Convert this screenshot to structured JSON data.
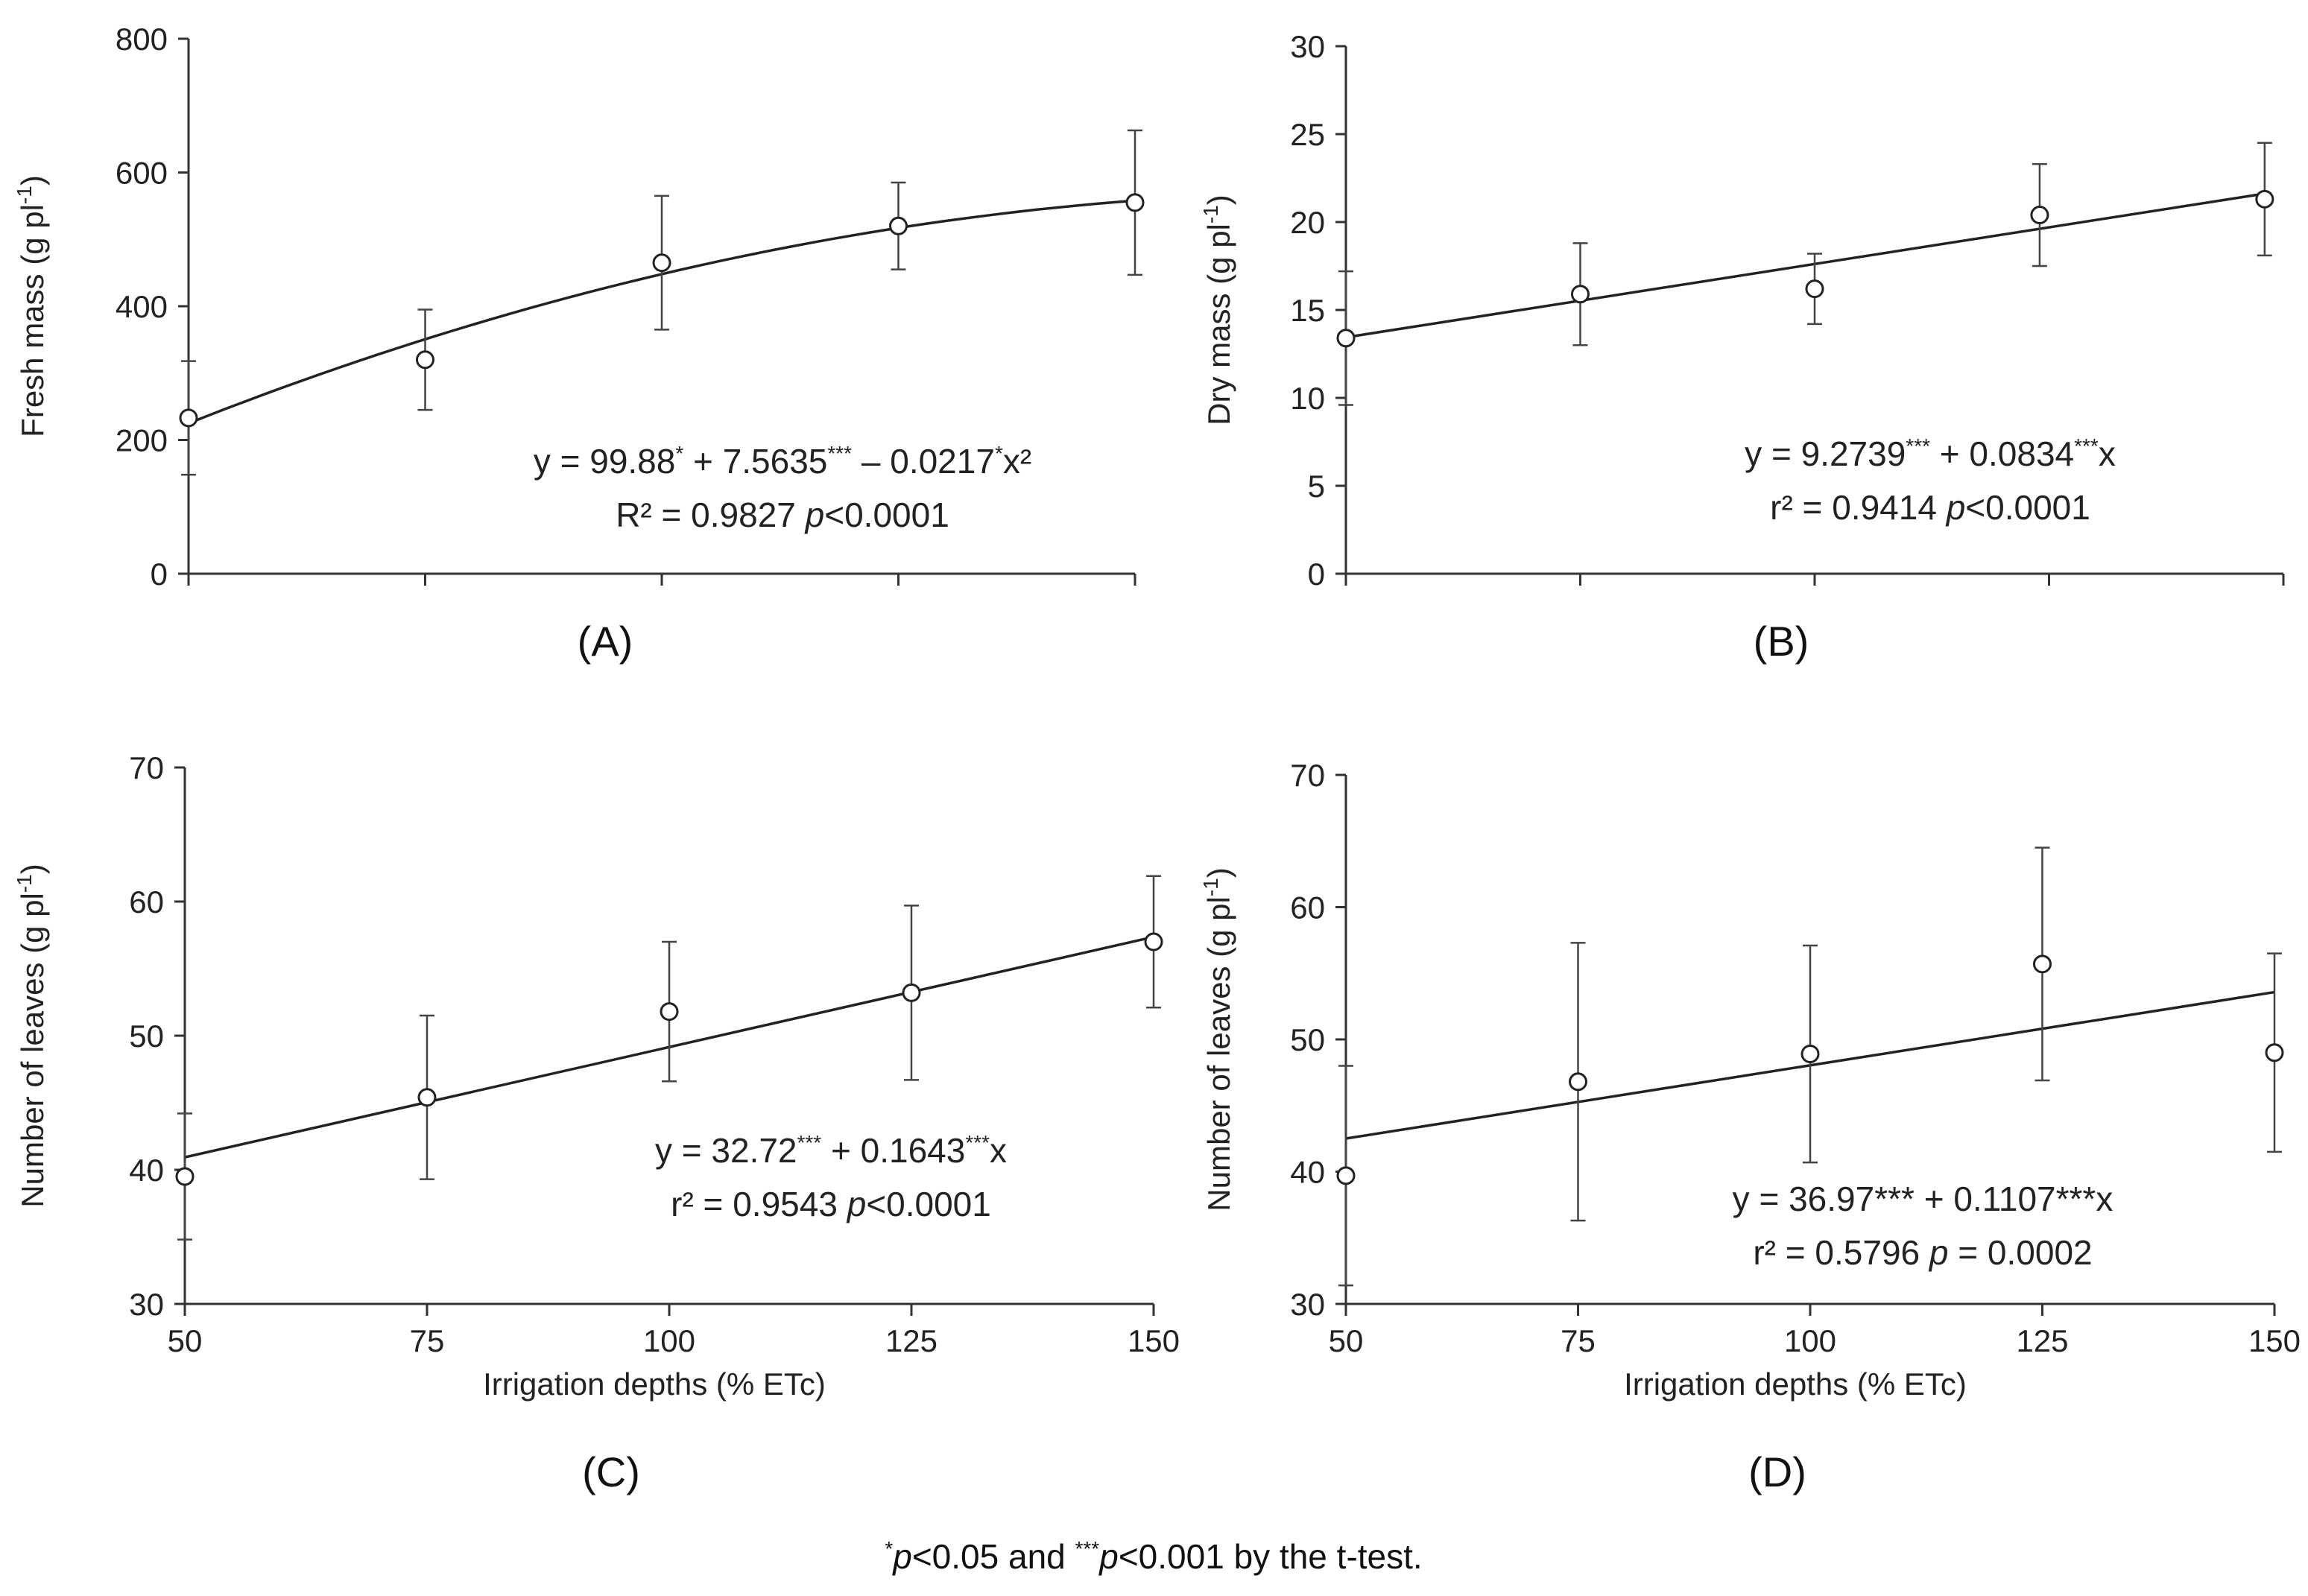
{
  "chart_data": [
    {
      "id": "A",
      "type": "scatter",
      "panel_label": "(A)",
      "ylabel": "Fresh mass (g pl",
      "ylabel_sup": "-1",
      "ylabel_close": ")",
      "xlabel": "",
      "xlim": [
        50,
        150
      ],
      "ylim": [
        0,
        800
      ],
      "yticks": [
        0,
        200,
        400,
        600,
        800
      ],
      "xticks": [
        50,
        75,
        100,
        125,
        150
      ],
      "x_tick_labels_shown": false,
      "points": [
        {
          "x": 50,
          "y": 233,
          "err": 85
        },
        {
          "x": 75,
          "y": 320,
          "err": 75
        },
        {
          "x": 100,
          "y": 465,
          "err": 100
        },
        {
          "x": 125,
          "y": 520,
          "err": 65
        },
        {
          "x": 150,
          "y": 555,
          "err": 108
        }
      ],
      "fit": {
        "kind": "quadratic",
        "range": [
          50,
          150
        ]
      },
      "equation_lines": [
        [
          {
            "t": "y = 99.88"
          },
          {
            "t": "*",
            "sup": true
          },
          {
            "t": " + 7.5635"
          },
          {
            "t": "***",
            "sup": true
          },
          {
            "t": " – 0.0217"
          },
          {
            "t": "*",
            "sup": true
          },
          {
            "t": "x²"
          }
        ],
        [
          {
            "t": "R² = 0.9827      "
          },
          {
            "t": "p",
            "italic": true
          },
          {
            "t": "<0.0001"
          }
        ]
      ]
    },
    {
      "id": "B",
      "type": "scatter",
      "panel_label": "(B)",
      "ylabel": "Dry mass (g pl",
      "ylabel_sup": "-1",
      "ylabel_close": ")",
      "xlabel": "",
      "xlim": [
        50,
        150
      ],
      "ylim": [
        0,
        30
      ],
      "yticks": [
        0,
        5,
        10,
        15,
        20,
        25,
        30
      ],
      "xticks": [
        50,
        75,
        100,
        125,
        150
      ],
      "x_tick_labels_shown": false,
      "points": [
        {
          "x": 50,
          "y": 13.4,
          "err": 3.8
        },
        {
          "x": 75,
          "y": 15.9,
          "err": 2.9
        },
        {
          "x": 100,
          "y": 16.2,
          "err": 2.0
        },
        {
          "x": 124,
          "y": 20.4,
          "err": 2.9
        },
        {
          "x": 148,
          "y": 21.3,
          "err": 3.2
        }
      ],
      "fit": {
        "kind": "linear",
        "intercept": 9.2739,
        "slope": 0.0834,
        "range": [
          50,
          148
        ]
      },
      "equation_lines": [
        [
          {
            "t": "y = 9.2739"
          },
          {
            "t": "***",
            "sup": true
          },
          {
            "t": " + 0.0834"
          },
          {
            "t": "***",
            "sup": true
          },
          {
            "t": "x"
          }
        ],
        [
          {
            "t": "r² = 0.9414      "
          },
          {
            "t": "p",
            "italic": true
          },
          {
            "t": "<0.0001"
          }
        ]
      ]
    },
    {
      "id": "C",
      "type": "scatter",
      "panel_label": "(C)",
      "ylabel": "Number of leaves (g pl",
      "ylabel_sup": "-1",
      "ylabel_close": ")",
      "xlabel": "Irrigation depths (% ETc)",
      "xlim": [
        50,
        150
      ],
      "ylim": [
        30,
        70
      ],
      "yticks": [
        30,
        40,
        50,
        60,
        70
      ],
      "xticks": [
        50,
        75,
        100,
        125,
        150
      ],
      "x_tick_labels_shown": true,
      "points": [
        {
          "x": 50,
          "y": 39.5,
          "err": 4.7
        },
        {
          "x": 75,
          "y": 45.4,
          "err": 6.1
        },
        {
          "x": 100,
          "y": 51.8,
          "err": 5.2
        },
        {
          "x": 125,
          "y": 53.2,
          "err": 6.5
        },
        {
          "x": 150,
          "y": 57.0,
          "err": 4.9
        }
      ],
      "fit": {
        "kind": "linear",
        "intercept": 32.72,
        "slope": 0.1643,
        "range": [
          50,
          150
        ]
      },
      "equation_lines": [
        [
          {
            "t": "y = 32.72"
          },
          {
            "t": "***",
            "sup": true
          },
          {
            "t": " + 0.1643"
          },
          {
            "t": "***",
            "sup": true
          },
          {
            "t": "x"
          }
        ],
        [
          {
            "t": "r² = 0.9543      "
          },
          {
            "t": "p",
            "italic": true
          },
          {
            "t": "<0.0001"
          }
        ]
      ]
    },
    {
      "id": "D",
      "type": "scatter",
      "panel_label": "(D)",
      "ylabel": "Number of leaves (g pl",
      "ylabel_sup": "-1",
      "ylabel_close": ")",
      "xlabel": "Irrigation depths (% ETc)",
      "xlim": [
        50,
        150
      ],
      "ylim": [
        30,
        70
      ],
      "yticks": [
        30,
        40,
        50,
        60,
        70
      ],
      "xticks": [
        50,
        75,
        100,
        125,
        150
      ],
      "x_tick_labels_shown": true,
      "points": [
        {
          "x": 50,
          "y": 39.7,
          "err": 8.3
        },
        {
          "x": 75,
          "y": 46.8,
          "err": 10.5
        },
        {
          "x": 100,
          "y": 48.9,
          "err": 8.2
        },
        {
          "x": 125,
          "y": 55.7,
          "err": 8.8
        },
        {
          "x": 150,
          "y": 49.0,
          "err": 7.5
        }
      ],
      "fit": {
        "kind": "linear",
        "intercept": 36.97,
        "slope": 0.1107,
        "range": [
          50,
          150
        ]
      },
      "equation_lines": [
        [
          {
            "t": "y = 36.97*** + 0.1107***x"
          }
        ],
        [
          {
            "t": "r² = 0.5796      "
          },
          {
            "t": "p",
            "italic": true
          },
          {
            "t": " = 0.0002"
          }
        ]
      ]
    }
  ],
  "footnote": [
    {
      "t": "*",
      "sup": true
    },
    {
      "t": "p",
      "italic": true
    },
    {
      "t": "<0.05  and  "
    },
    {
      "t": "***",
      "sup": true
    },
    {
      "t": "p",
      "italic": true
    },
    {
      "t": "<0.001 by the t-test."
    }
  ]
}
